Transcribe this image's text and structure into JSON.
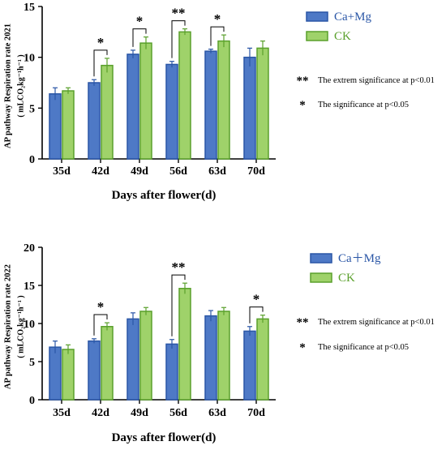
{
  "colors": {
    "ca_mg_fill": "#4e79c6",
    "ca_mg_stroke": "#2a56a6",
    "ck_fill": "#9fd26a",
    "ck_stroke": "#5aa02c",
    "axis": "#000000"
  },
  "chart_data": [
    {
      "type": "bar",
      "ylabel_line1": "AP pathway Respiration rate 2021",
      "ylabel_line2": "( mLCO₂kg⁻¹h⁻¹ )",
      "xlabel": "Days after flower(d)",
      "categories": [
        "35d",
        "42d",
        "49d",
        "56d",
        "63d",
        "70d"
      ],
      "ylim": [
        0,
        15
      ],
      "yticks": [
        "0",
        "5",
        "10",
        "15"
      ],
      "series": [
        {
          "name": "Ca+Mg",
          "values": [
            6.4,
            7.5,
            10.3,
            9.3,
            10.6,
            10.0
          ],
          "errors": [
            0.6,
            0.3,
            0.4,
            0.3,
            0.2,
            0.9
          ]
        },
        {
          "name": "CK",
          "values": [
            6.7,
            9.2,
            11.4,
            12.5,
            11.6,
            10.9
          ],
          "errors": [
            0.3,
            0.7,
            0.6,
            0.3,
            0.6,
            0.7
          ]
        }
      ],
      "significance": [
        {
          "category": "42d",
          "mark": "*"
        },
        {
          "category": "49d",
          "mark": "*"
        },
        {
          "category": "56d",
          "mark": "**"
        },
        {
          "category": "63d",
          "mark": "*"
        }
      ],
      "legend_placement": "right",
      "notes": [
        {
          "mark": "**",
          "text": "The extrem significance at p<0.01"
        },
        {
          "mark": "*",
          "text": "The significance at p<0.05"
        }
      ]
    },
    {
      "type": "bar",
      "ylabel_line1": "AP pathway Respiration rate 2022",
      "ylabel_line2": "( mLCO₂kg⁻¹h⁻¹ )",
      "xlabel": "Days after flower(d)",
      "categories": [
        "35d",
        "42d",
        "49d",
        "56d",
        "63d",
        "70d"
      ],
      "ylim": [
        0,
        20
      ],
      "yticks": [
        "0",
        "5",
        "10",
        "15",
        "20"
      ],
      "series": [
        {
          "name": "Ca＋Mg",
          "values": [
            6.9,
            7.7,
            10.6,
            7.3,
            11.0,
            9.0
          ],
          "errors": [
            0.8,
            0.3,
            0.8,
            0.6,
            0.7,
            0.6
          ]
        },
        {
          "name": "CK",
          "values": [
            6.6,
            9.6,
            11.6,
            14.6,
            11.6,
            10.6
          ],
          "errors": [
            0.6,
            0.5,
            0.5,
            0.7,
            0.5,
            0.5
          ]
        }
      ],
      "significance": [
        {
          "category": "42d",
          "mark": "*"
        },
        {
          "category": "56d",
          "mark": "**"
        },
        {
          "category": "70d",
          "mark": "*"
        }
      ],
      "legend_placement": "right",
      "notes": [
        {
          "mark": "**",
          "text": "The extrem significance at p<0.01"
        },
        {
          "mark": "*",
          "text": "The significance at p<0.05"
        }
      ]
    }
  ]
}
